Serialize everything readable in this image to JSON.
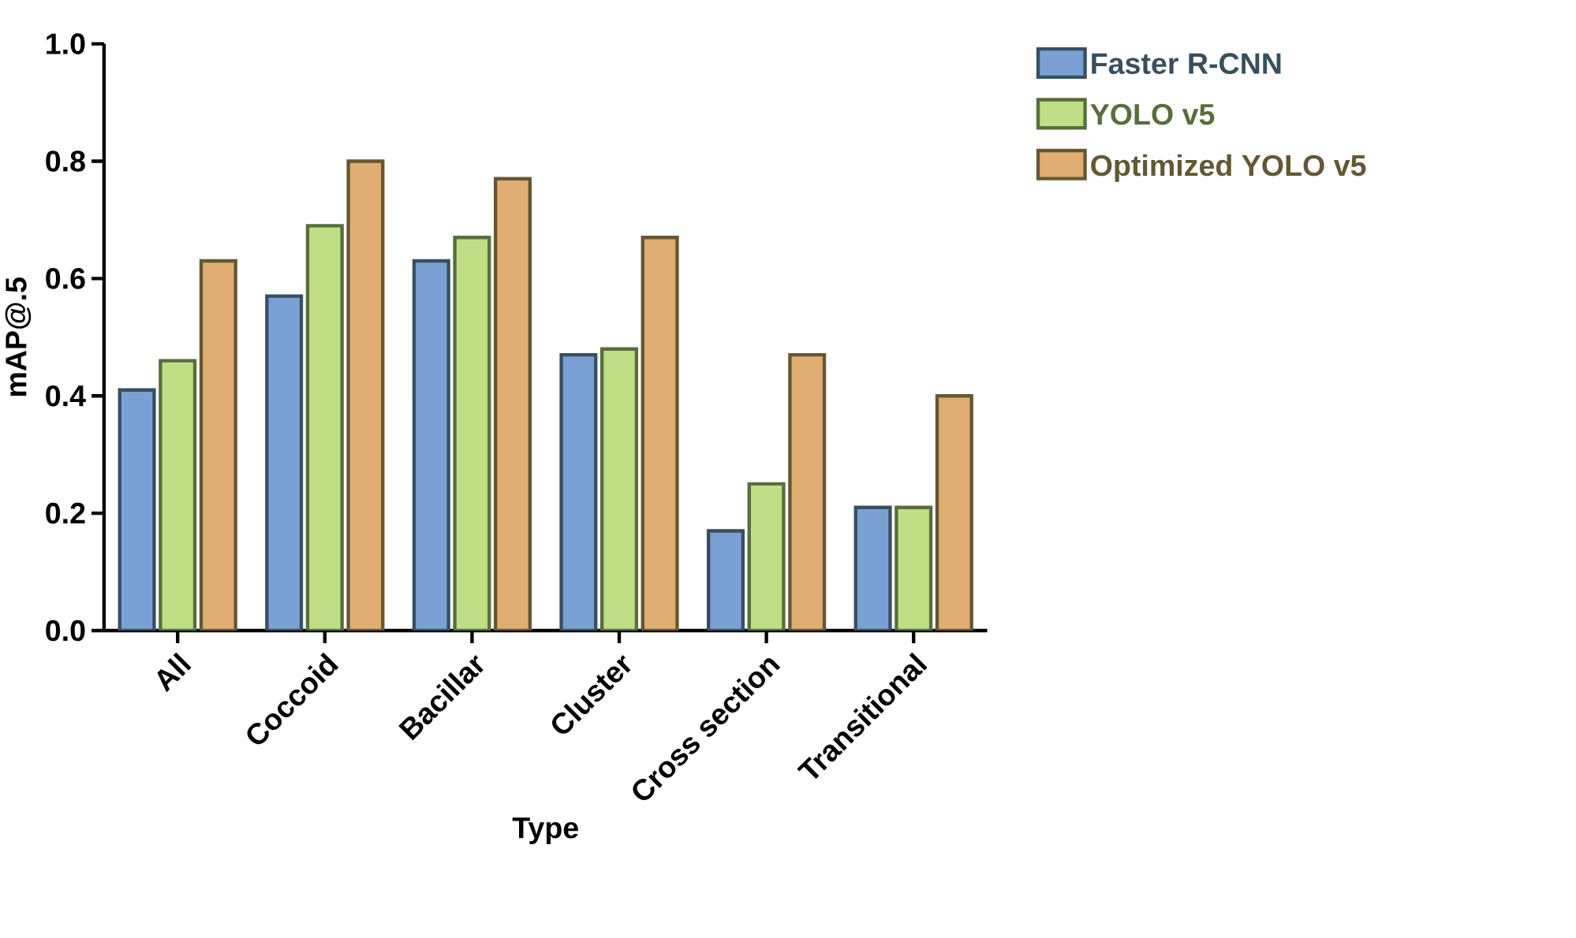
{
  "chart_data": {
    "type": "bar",
    "xlabel": "Type",
    "ylabel": "mAP@.5",
    "categories": [
      "All",
      "Coccoid",
      "Bacillar",
      "Cluster",
      "Cross section",
      "Transitional"
    ],
    "series": [
      {
        "name": "Faster R-CNN",
        "color": "#7aa0d4",
        "values": [
          0.41,
          0.57,
          0.63,
          0.47,
          0.17,
          0.21
        ]
      },
      {
        "name": "YOLO v5",
        "color": "#c0de85",
        "values": [
          0.46,
          0.69,
          0.67,
          0.48,
          0.25,
          0.21
        ]
      },
      {
        "name": "Optimized YOLO v5",
        "color": "#e0ae72",
        "values": [
          0.63,
          0.8,
          0.77,
          0.67,
          0.47,
          0.4
        ]
      }
    ],
    "ylim": [
      0,
      1.0
    ],
    "yticks": [
      {
        "value": 0,
        "label": "0.0"
      },
      {
        "value": 0.2,
        "label": "0.2"
      },
      {
        "value": 0.4,
        "label": "0.4"
      },
      {
        "value": 0.6,
        "label": "0.6"
      },
      {
        "value": 0.8,
        "label": "0.8"
      },
      {
        "value": 1.0,
        "label": "1.0"
      }
    ],
    "legend": "top right",
    "grid": false
  }
}
